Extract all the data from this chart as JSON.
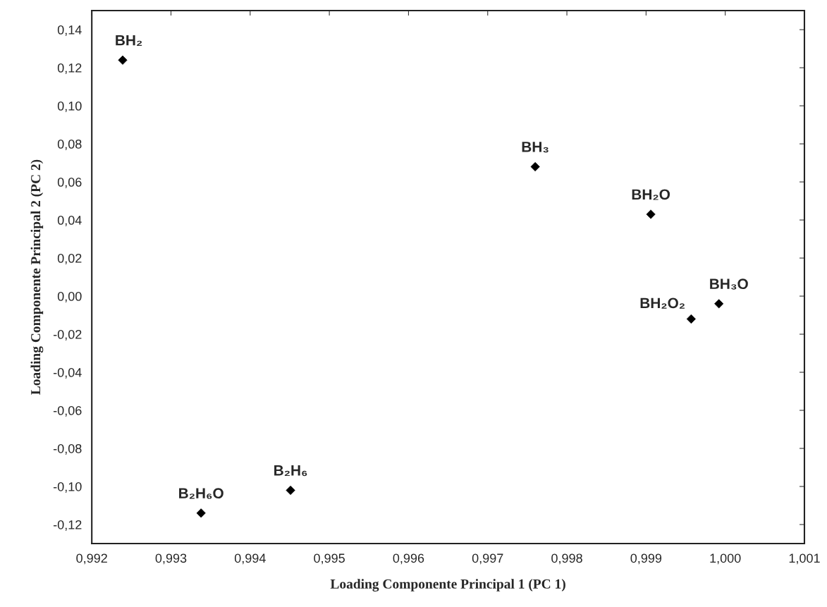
{
  "chart_data": {
    "type": "scatter",
    "xlabel": "Loading Componente Principal 1 (PC 1)",
    "ylabel": "Loading Componente Principal 2 (PC 2)",
    "x": [
      0.99239,
      0.9976,
      0.99906,
      0.99992,
      0.99957,
      0.99451,
      0.99338
    ],
    "series": [
      {
        "color": "#000000",
        "values": [
          0.124,
          0.068,
          0.043,
          -0.004,
          -0.012,
          -0.102,
          -0.114
        ]
      }
    ],
    "marker": "diamond",
    "xlim": [
      0.992,
      1.001
    ],
    "xticks": [
      {
        "value": 0.992,
        "label": "0,992"
      },
      {
        "value": 0.993,
        "label": "0,993"
      },
      {
        "value": 0.994,
        "label": "0,994"
      },
      {
        "value": 0.995,
        "label": "0,995"
      },
      {
        "value": 0.996,
        "label": "0,996"
      },
      {
        "value": 0.997,
        "label": "0,997"
      },
      {
        "value": 0.998,
        "label": "0,998"
      },
      {
        "value": 0.999,
        "label": "0,999"
      },
      {
        "value": 1.0,
        "label": "1,000"
      },
      {
        "value": 1.001,
        "label": "1,001"
      }
    ],
    "ylim": [
      -0.13,
      0.15
    ],
    "yticks": [
      {
        "value": -0.12,
        "label": "-0,12"
      },
      {
        "value": -0.1,
        "label": "-0,10"
      },
      {
        "value": -0.08,
        "label": "-0,08"
      },
      {
        "value": -0.06,
        "label": "-0,06"
      },
      {
        "value": -0.04,
        "label": "-0,04"
      },
      {
        "value": -0.02,
        "label": "-0,02"
      },
      {
        "value": 0.0,
        "label": "0,00"
      },
      {
        "value": 0.02,
        "label": "0,02"
      },
      {
        "value": 0.04,
        "label": "0,04"
      },
      {
        "value": 0.06,
        "label": "0,06"
      },
      {
        "value": 0.08,
        "label": "0,08"
      },
      {
        "value": 0.1,
        "label": "0,10"
      },
      {
        "value": 0.12,
        "label": "0,12"
      },
      {
        "value": 0.14,
        "label": "0,14"
      }
    ],
    "grid": false,
    "legend": false,
    "annotations": [
      {
        "text": "BH₂",
        "x": 0.99239,
        "y": 0.124
      },
      {
        "text": "BH₃",
        "x": 0.9976,
        "y": 0.068
      },
      {
        "text": "BH₂O",
        "x": 0.99906,
        "y": 0.043
      },
      {
        "text": "BH₃O",
        "x": 0.99992,
        "y": -0.004
      },
      {
        "text": "BH₂O₂",
        "x": 0.99957,
        "y": -0.012
      },
      {
        "text": "B₂H₆",
        "x": 0.99451,
        "y": -0.102
      },
      {
        "text": "B₂H₆O",
        "x": 0.99338,
        "y": -0.114
      }
    ]
  }
}
